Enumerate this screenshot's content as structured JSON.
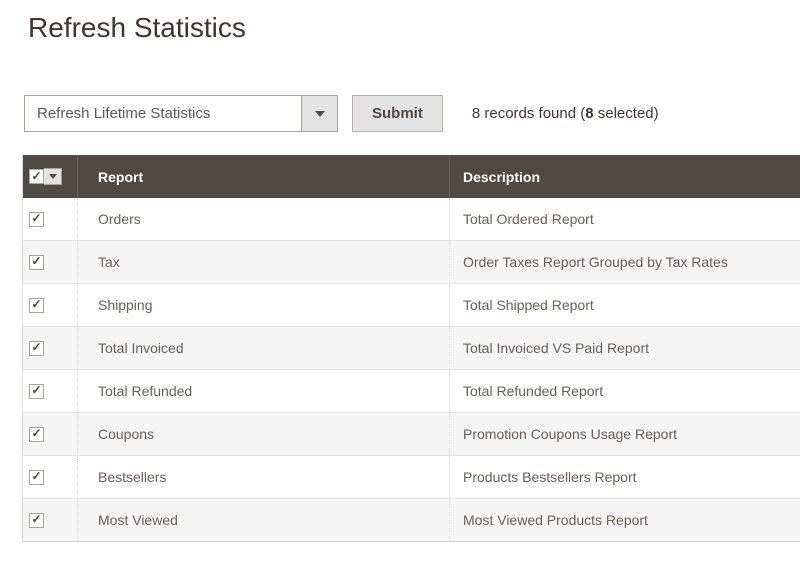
{
  "page": {
    "title": "Refresh Statistics"
  },
  "toolbar": {
    "action_select_value": "Refresh Lifetime Statistics",
    "submit_label": "Submit",
    "records": {
      "prefix": "8 records found (",
      "selected": "8",
      "suffix": " selected)"
    }
  },
  "icons": {
    "check": "✓"
  },
  "colors": {
    "header_bg": "#514943",
    "title_text": "#41362f",
    "cell_text": "#676056",
    "button_bg": "#e3e3e3",
    "row_alt_bg": "#f5f5f5"
  },
  "table": {
    "columns": {
      "report": "Report",
      "description": "Description"
    },
    "select_all_checked": true,
    "rows": [
      {
        "checked": true,
        "report": "Orders",
        "description": "Total Ordered Report"
      },
      {
        "checked": true,
        "report": "Tax",
        "description": "Order Taxes Report Grouped by Tax Rates"
      },
      {
        "checked": true,
        "report": "Shipping",
        "description": "Total Shipped Report"
      },
      {
        "checked": true,
        "report": "Total Invoiced",
        "description": "Total Invoiced VS Paid Report"
      },
      {
        "checked": true,
        "report": "Total Refunded",
        "description": "Total Refunded Report"
      },
      {
        "checked": true,
        "report": "Coupons",
        "description": "Promotion Coupons Usage Report"
      },
      {
        "checked": true,
        "report": "Bestsellers",
        "description": "Products Bestsellers Report"
      },
      {
        "checked": true,
        "report": "Most Viewed",
        "description": "Most Viewed Products Report"
      }
    ]
  }
}
